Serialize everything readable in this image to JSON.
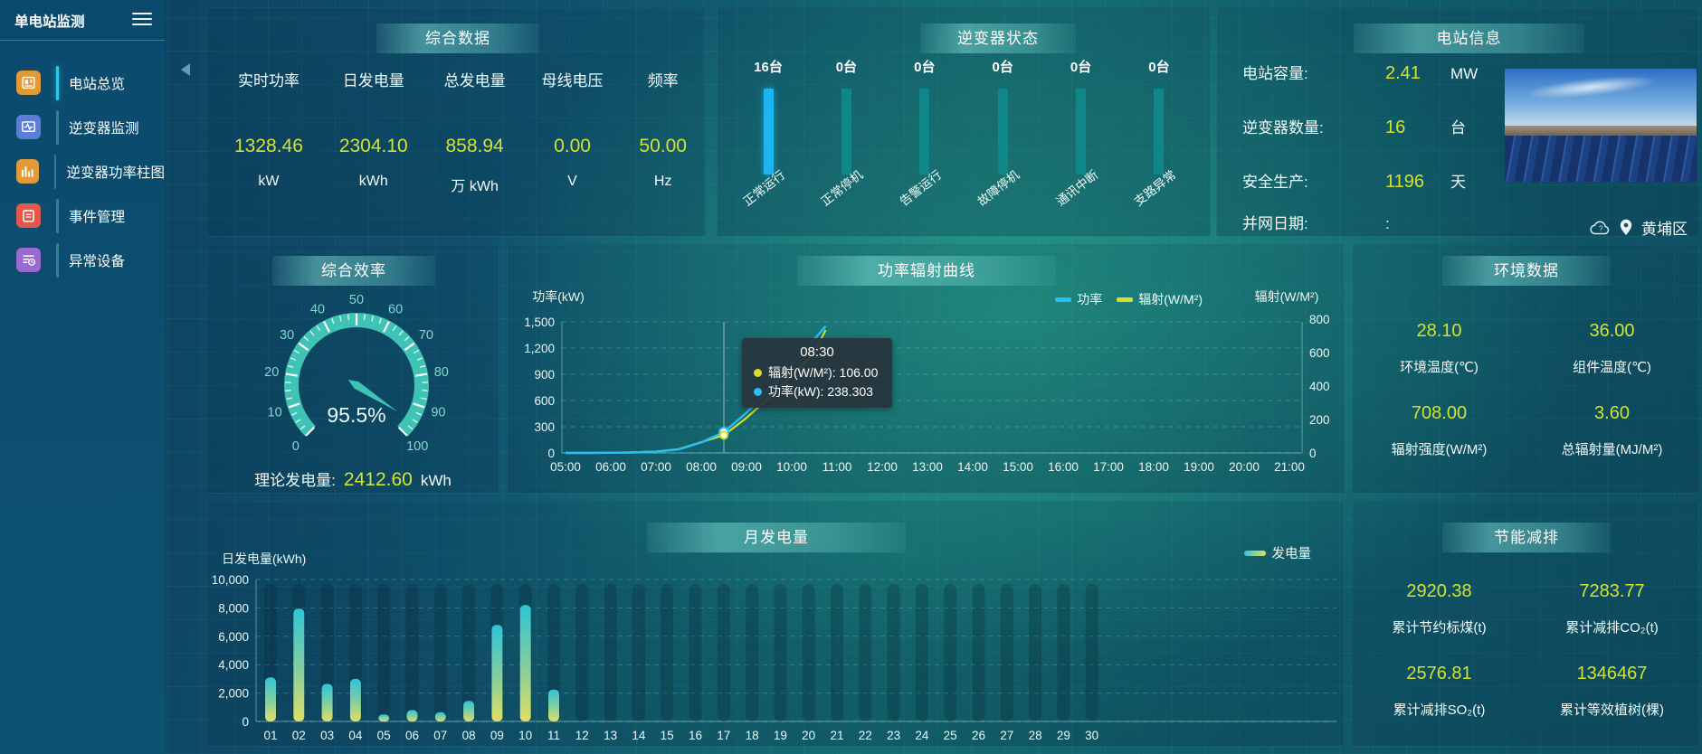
{
  "app": {
    "title": "单电站监测"
  },
  "sidebar": {
    "items": [
      {
        "label": "电站总览",
        "icon": "overview",
        "color": "#e09a3a",
        "active": true
      },
      {
        "label": "逆变器监测",
        "icon": "inverter-monitor",
        "color": "#5b7fd6",
        "active": false
      },
      {
        "label": "逆变器功率柱图",
        "icon": "power-bars",
        "color": "#e09a3a",
        "active": false
      },
      {
        "label": "事件管理",
        "icon": "event",
        "color": "#e4574d",
        "active": false
      },
      {
        "label": "异常设备",
        "icon": "abnormal-device",
        "color": "#9a6ad2",
        "active": false
      }
    ]
  },
  "summary": {
    "title": "综合数据",
    "metrics": [
      {
        "label": "实时功率",
        "value": "1328.46",
        "unit": "kW"
      },
      {
        "label": "日发电量",
        "value": "2304.10",
        "unit": "kWh"
      },
      {
        "label": "总发电量",
        "value": "858.94",
        "unit": "万 kWh"
      },
      {
        "label": "母线电压",
        "value": "0.00",
        "unit": "V"
      },
      {
        "label": "频率",
        "value": "50.00",
        "unit": "Hz"
      }
    ]
  },
  "inverter_status": {
    "title": "逆变器状态",
    "active_color": "#1db4f0",
    "inactive_color": "#0f8688",
    "items": [
      {
        "count": "16台",
        "label": "正常运行",
        "active": true
      },
      {
        "count": "0台",
        "label": "正常停机",
        "active": false
      },
      {
        "count": "0台",
        "label": "告警运行",
        "active": false
      },
      {
        "count": "0台",
        "label": "故障停机",
        "active": false
      },
      {
        "count": "0台",
        "label": "通讯中断",
        "active": false
      },
      {
        "count": "0台",
        "label": "支路异常",
        "active": false
      }
    ]
  },
  "station_info": {
    "title": "电站信息",
    "rows": [
      {
        "label": "电站容量:",
        "value": "2.41",
        "unit": "MW",
        "muted": false
      },
      {
        "label": "逆变器数量:",
        "value": "16",
        "unit": "台",
        "muted": false
      },
      {
        "label": "安全生产:",
        "value": "1196",
        "unit": "天",
        "muted": false
      },
      {
        "label": "并网日期:",
        "value": ":",
        "unit": "",
        "muted": true
      }
    ],
    "location": "黄埔区"
  },
  "efficiency": {
    "title": "综合效率",
    "percent": 95.5,
    "display": "95.5%",
    "tick_labels": [
      0,
      10,
      20,
      30,
      40,
      50,
      60,
      70,
      80,
      90,
      100
    ],
    "theory": {
      "label": "理论发电量:",
      "value": "2412.60",
      "unit": "kWh"
    }
  },
  "power_radiation": {
    "title": "功率辐射曲线",
    "legend": [
      {
        "label": "功率",
        "color": "#25c1f5"
      },
      {
        "label": "辐射(W/M²)",
        "color": "#d7dd2b"
      }
    ],
    "left_axis": {
      "name": "功率(kW)",
      "ticks": [
        "0",
        "300",
        "600",
        "900",
        "1,200",
        "1,500"
      ],
      "max": 1500
    },
    "right_axis": {
      "name": "辐射(W/M²)",
      "ticks": [
        "0",
        "200",
        "400",
        "600",
        "800"
      ],
      "max": 800
    },
    "x_labels": [
      "05:00",
      "06:00",
      "07:00",
      "08:00",
      "09:00",
      "10:00",
      "11:00",
      "12:00",
      "13:00",
      "14:00",
      "15:00",
      "16:00",
      "17:00",
      "18:00",
      "19:00",
      "20:00",
      "21:00"
    ],
    "series": {
      "x_hours": [
        5,
        5.5,
        6,
        6.5,
        7,
        7.5,
        8,
        8.5,
        9,
        9.5,
        10,
        10.5,
        10.75
      ],
      "times": [
        "05:00",
        "05:30",
        "06:00",
        "06:30",
        "07:00",
        "07:30",
        "08:00",
        "08:30",
        "09:00",
        "09:30",
        "10:00",
        "10:30",
        "10:45"
      ],
      "power": [
        0,
        0,
        2,
        5,
        14,
        40,
        120,
        238.3,
        460,
        730,
        1010,
        1300,
        1450
      ],
      "radiation": [
        0,
        0,
        1,
        3,
        8,
        22,
        65,
        106,
        210,
        330,
        460,
        600,
        735
      ]
    },
    "tooltip": {
      "time": "08:30",
      "x_hour": 8.5,
      "power_value": 238.303,
      "radiation_value": 106,
      "rows": [
        {
          "color": "#d7dd2b",
          "text": "辐射(W/M²): 106.00"
        },
        {
          "color": "#25c1f5",
          "text": "功率(kW): 238.303"
        }
      ]
    }
  },
  "environment": {
    "title": "环境数据",
    "stats": [
      {
        "value": "28.10",
        "label": "环境温度(℃)"
      },
      {
        "value": "36.00",
        "label": "组件温度(℃)"
      },
      {
        "value": "708.00",
        "label": "辐射强度(W/M²)"
      },
      {
        "value": "3.60",
        "label": "总辐射量(MJ/M²)"
      }
    ]
  },
  "monthly": {
    "title": "月发电量",
    "axis_name": "日发电量(kWh)",
    "y_ticks": [
      "0",
      "2,000",
      "4,000",
      "6,000",
      "8,000",
      "10,000"
    ],
    "y_max": 10000,
    "legend": "发电量",
    "categories": [
      "01",
      "02",
      "03",
      "04",
      "05",
      "06",
      "07",
      "08",
      "09",
      "10",
      "11",
      "12",
      "13",
      "14",
      "15",
      "16",
      "17",
      "18",
      "19",
      "20",
      "21",
      "22",
      "23",
      "24",
      "25",
      "26",
      "27",
      "28",
      "29",
      "30"
    ],
    "values": [
      3100,
      7950,
      2650,
      3000,
      500,
      800,
      650,
      1450,
      6800,
      8200,
      2250,
      0,
      0,
      0,
      0,
      0,
      0,
      0,
      0,
      0,
      0,
      0,
      0,
      0,
      0,
      0,
      0,
      0,
      0,
      0
    ]
  },
  "energy_saving": {
    "title": "节能减排",
    "stats": [
      {
        "value": "2920.38",
        "label": "累计节约标煤(t)"
      },
      {
        "value": "7283.77",
        "label": "累计减排CO₂(t)"
      },
      {
        "value": "2576.81",
        "label": "累计减排SO₂(t)"
      },
      {
        "value": "1346467",
        "label": "累计等效植树(棵)"
      }
    ]
  },
  "chart_data": [
    {
      "type": "bar",
      "title": "逆变器状态",
      "categories": [
        "正常运行",
        "正常停机",
        "告警运行",
        "故障停机",
        "通讯中断",
        "支路异常"
      ],
      "values": [
        16,
        0,
        0,
        0,
        0,
        0
      ],
      "unit": "台"
    },
    {
      "type": "gauge",
      "title": "综合效率",
      "value": 95.5,
      "range": [
        0,
        100
      ],
      "unit": "%"
    },
    {
      "type": "line",
      "title": "功率辐射曲线",
      "x": [
        "05:00",
        "05:30",
        "06:00",
        "06:30",
        "07:00",
        "07:30",
        "08:00",
        "08:30",
        "09:00",
        "09:30",
        "10:00",
        "10:30",
        "10:45"
      ],
      "series": [
        {
          "name": "功率(kW)",
          "values": [
            0,
            0,
            2,
            5,
            14,
            40,
            120,
            238.3,
            460,
            730,
            1010,
            1300,
            1450
          ]
        },
        {
          "name": "辐射(W/M²)",
          "values": [
            0,
            0,
            1,
            3,
            8,
            22,
            65,
            106,
            210,
            330,
            460,
            600,
            735
          ]
        }
      ],
      "xlabel": "",
      "ylabel": "功率(kW) / 辐射(W/M²)",
      "ylim_left": [
        0,
        1500
      ],
      "ylim_right": [
        0,
        800
      ],
      "x_axis_range": [
        "05:00",
        "21:00"
      ],
      "grid": true,
      "legend_position": "top-right",
      "annotation": "tooltip @08:30 → 辐射 106.00 W/M², 功率 238.303 kW"
    },
    {
      "type": "bar",
      "title": "月发电量",
      "categories": [
        "01",
        "02",
        "03",
        "04",
        "05",
        "06",
        "07",
        "08",
        "09",
        "10",
        "11",
        "12",
        "13",
        "14",
        "15",
        "16",
        "17",
        "18",
        "19",
        "20",
        "21",
        "22",
        "23",
        "24",
        "25",
        "26",
        "27",
        "28",
        "29",
        "30"
      ],
      "values": [
        3100,
        7950,
        2650,
        3000,
        500,
        800,
        650,
        1450,
        6800,
        8200,
        2250,
        0,
        0,
        0,
        0,
        0,
        0,
        0,
        0,
        0,
        0,
        0,
        0,
        0,
        0,
        0,
        0,
        0,
        0,
        0
      ],
      "xlabel": "",
      "ylabel": "日发电量(kWh)",
      "ylim": [
        0,
        10000
      ],
      "grid": true,
      "legend": [
        "发电量"
      ]
    }
  ]
}
